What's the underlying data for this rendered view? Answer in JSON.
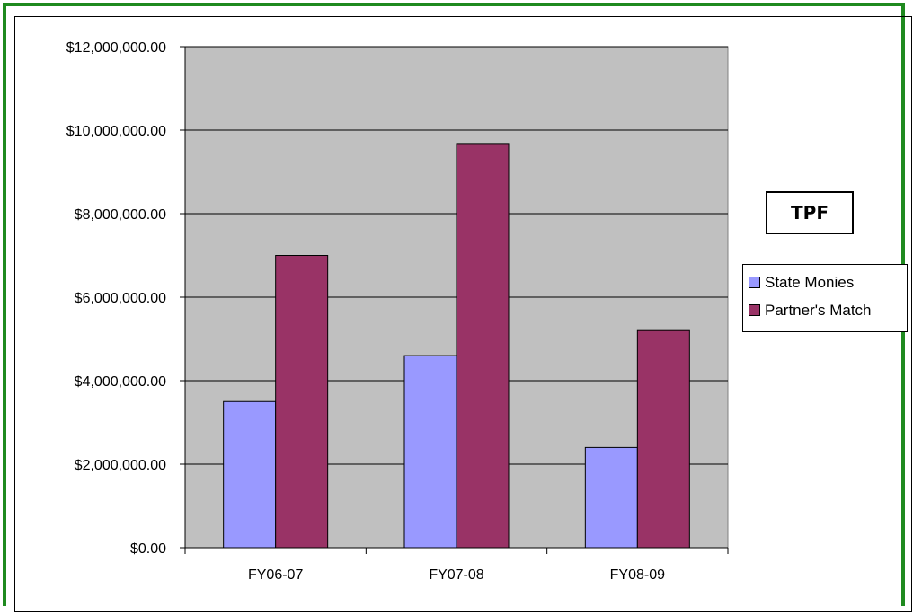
{
  "chart_data": {
    "type": "bar",
    "title": "TPF",
    "categories": [
      "FY06-07",
      "FY07-08",
      "FY08-09"
    ],
    "series": [
      {
        "name": "State Monies",
        "color": "#9999ff",
        "values": [
          3500000,
          4600000,
          2400000
        ]
      },
      {
        "name": "Partner's Match",
        "color": "#993366",
        "values": [
          7000000,
          9680000,
          5200000
        ]
      }
    ],
    "ylim": [
      0,
      12000000
    ],
    "yticks": [
      0,
      2000000,
      4000000,
      6000000,
      8000000,
      10000000,
      12000000
    ],
    "ytick_labels": [
      "$0.00",
      "$2,000,000.00",
      "$4,000,000.00",
      "$6,000,000.00",
      "$8,000,000.00",
      "$10,000,000.00",
      "$12,000,000.00"
    ],
    "plot_background": "#c0c0c0",
    "grid": true,
    "legend_position": "right"
  }
}
